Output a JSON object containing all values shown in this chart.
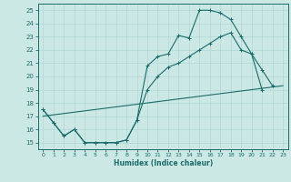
{
  "xlabel": "Humidex (Indice chaleur)",
  "bg_color": "#cce8e5",
  "line_color": "#1a6b6b",
  "grid_color": "#afd8d4",
  "xlim": [
    -0.5,
    23.5
  ],
  "ylim": [
    14.5,
    25.5
  ],
  "xticks": [
    0,
    1,
    2,
    3,
    4,
    5,
    6,
    7,
    8,
    9,
    10,
    11,
    12,
    13,
    14,
    15,
    16,
    17,
    18,
    19,
    20,
    21,
    22,
    23
  ],
  "yticks": [
    15,
    16,
    17,
    18,
    19,
    20,
    21,
    22,
    23,
    24,
    25
  ],
  "series1_x": [
    0,
    1,
    2,
    3,
    4,
    5,
    6,
    7,
    8,
    9,
    10,
    11,
    12,
    13,
    14,
    15,
    16,
    17,
    18,
    19,
    20,
    21,
    22
  ],
  "series1_y": [
    17.5,
    16.5,
    15.5,
    16.0,
    15.0,
    15.0,
    15.0,
    15.0,
    15.2,
    16.7,
    20.8,
    21.5,
    21.7,
    23.1,
    22.9,
    25.0,
    25.0,
    24.8,
    24.3,
    23.0,
    21.7,
    20.5,
    19.3
  ],
  "series2_x": [
    0,
    1,
    2,
    3,
    4,
    5,
    6,
    7,
    8,
    9,
    10,
    11,
    12,
    13,
    14,
    15,
    16,
    17,
    18,
    19,
    20,
    21
  ],
  "series2_y": [
    17.5,
    16.5,
    15.5,
    16.0,
    15.0,
    15.0,
    15.0,
    15.0,
    15.2,
    16.7,
    19.0,
    20.0,
    20.7,
    21.0,
    21.5,
    22.0,
    22.5,
    23.0,
    23.3,
    22.0,
    21.7,
    19.0
  ],
  "series3_x": [
    0,
    23
  ],
  "series3_y": [
    17.0,
    19.3
  ]
}
